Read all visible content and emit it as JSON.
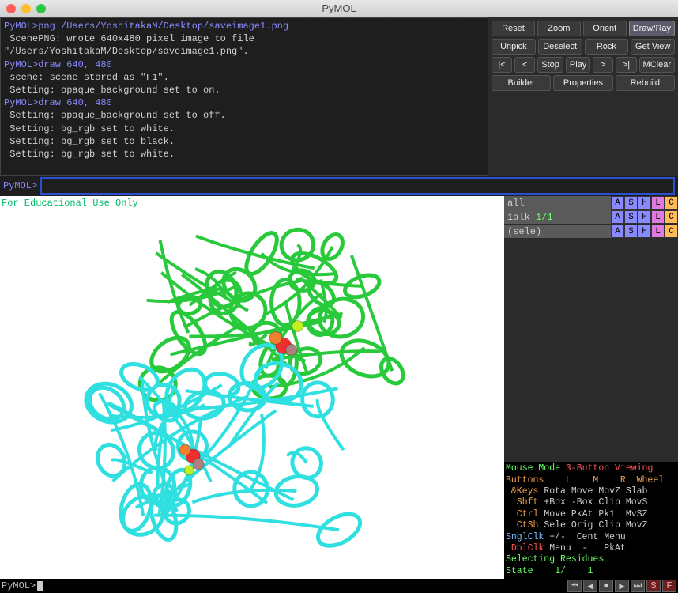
{
  "window": {
    "title": "PyMOL"
  },
  "traffic_colors": {
    "close": "#ff5f57",
    "min": "#ffbd2e",
    "max": "#28c940"
  },
  "console": {
    "lines": [
      {
        "cls": "prompt",
        "text": "PyMOL>png /Users/YoshitakaM/Desktop/saveimage1.png"
      },
      {
        "cls": "output",
        "text": " ScenePNG: wrote 640x480 pixel image to file \"/Users/YoshitakaM/Desktop/saveimage1.png\"."
      },
      {
        "cls": "prompt",
        "text": "PyMOL>draw 640, 480"
      },
      {
        "cls": "output",
        "text": " scene: scene stored as \"F1\"."
      },
      {
        "cls": "output",
        "text": " Setting: opaque_background set to on."
      },
      {
        "cls": "prompt",
        "text": "PyMOL>draw 640, 480"
      },
      {
        "cls": "output",
        "text": " Setting: opaque_background set to off."
      },
      {
        "cls": "output",
        "text": " Setting: bg_rgb set to white."
      },
      {
        "cls": "output",
        "text": " Setting: bg_rgb set to black."
      },
      {
        "cls": "output",
        "text": " Setting: bg_rgb set to white."
      }
    ]
  },
  "buttons": {
    "rows": [
      [
        "Reset",
        "Zoom",
        "Orient",
        "Draw/Ray"
      ],
      [
        "Unpick",
        "Deselect",
        "Rock",
        "Get View"
      ],
      [
        "|<",
        "<",
        "Stop",
        "Play",
        ">",
        ">|",
        "MClear"
      ],
      [
        "Builder",
        "Properties",
        "Rebuild"
      ]
    ],
    "selected": "Draw/Ray"
  },
  "cmd_prompt": "PyMOL>",
  "cmd_value": "",
  "edu_text": "For Educational Use Only",
  "objects": [
    {
      "name": "all",
      "count": "",
      "btns": [
        "A",
        "S",
        "H",
        "L",
        "C"
      ]
    },
    {
      "name": "1alk",
      "count": "1/1",
      "btns": [
        "A",
        "S",
        "H",
        "L",
        "C"
      ]
    },
    {
      "name": "(sele)",
      "count": "",
      "btns": [
        "A",
        "S",
        "H",
        "L",
        "C"
      ]
    }
  ],
  "obj_btn_colors": {
    "A": "#8a8aff",
    "S": "#8a8aff",
    "H": "#8a8aff",
    "L": "#e07ae0",
    "C": "#ffbb55"
  },
  "mouse": {
    "mode_lhs": "Mouse Mode ",
    "mode_rhs": "3-Button Viewing",
    "header": "Buttons    L    M    R  Wheel",
    "rows": [
      {
        "k": " &Keys",
        "v": " Rota Move MovZ Slab"
      },
      {
        "k": "  Shft",
        "v": " +Box -Box Clip MovS"
      },
      {
        "k": "  Ctrl",
        "v": " Move PkAt Pk1  MvSZ"
      },
      {
        "k": "  CtSh",
        "v": " Sele Orig Clip MovZ"
      }
    ],
    "sngl": {
      "k": "SnglClk",
      "v": " +/-  Cent Menu"
    },
    "dbl": {
      "k": " DblClk",
      "v": " Menu  -   PkAt"
    },
    "selecting": "Selecting Residues",
    "state": "State    1/    1"
  },
  "status_prompt": "PyMOL>",
  "movie_buttons": [
    "⏮",
    "◀",
    "⏹",
    "▶",
    "⏭",
    "S",
    "F"
  ],
  "movie_selected": [
    "S",
    "F"
  ],
  "protein": {
    "chainA_color": "#28c93a",
    "chainB_color": "#30e0e0",
    "sphere_colors": [
      "#f03030",
      "#f08030",
      "#b08080",
      "#c0f020"
    ]
  }
}
